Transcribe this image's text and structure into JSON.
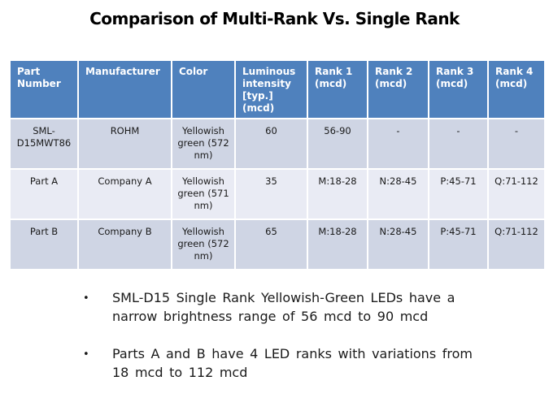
{
  "title": "Comparison of Multi-Rank Vs. Single Rank",
  "colors": {
    "header_bg": "#4f81bd",
    "band_dark": "#cfd5e4",
    "band_light": "#e9ebf4",
    "text": "#1a1a1a"
  },
  "table": {
    "headers": [
      "Part Number",
      "Manufacturer",
      "Color",
      "Luminous intensity [typ.] (mcd)",
      "Rank 1 (mcd)",
      "Rank 2 (mcd)",
      "Rank 3 (mcd)",
      "Rank 4 (mcd)"
    ],
    "rows": [
      [
        "SML-D15MWT86",
        "ROHM",
        "Yellowish green (572 nm)",
        "60",
        "56-90",
        "-",
        "-",
        "-"
      ],
      [
        "Part A",
        "Company A",
        "Yellowish green (571 nm)",
        "35",
        "M:18-28",
        "N:28-45",
        "P:45-71",
        "Q:71-112"
      ],
      [
        "Part B",
        "Company B",
        "Yellowish green (572 nm)",
        "65",
        "M:18-28",
        "N:28-45",
        "P:45-71",
        "Q:71-112"
      ]
    ]
  },
  "bullets": [
    "SML-D15 Single Rank Yellowish-Green LEDs have a narrow brightness range of 56 mcd to 90 mcd",
    "Parts A and B have 4 LED ranks with variations from 18 mcd to 112 mcd"
  ],
  "bullet_glyph": "•"
}
